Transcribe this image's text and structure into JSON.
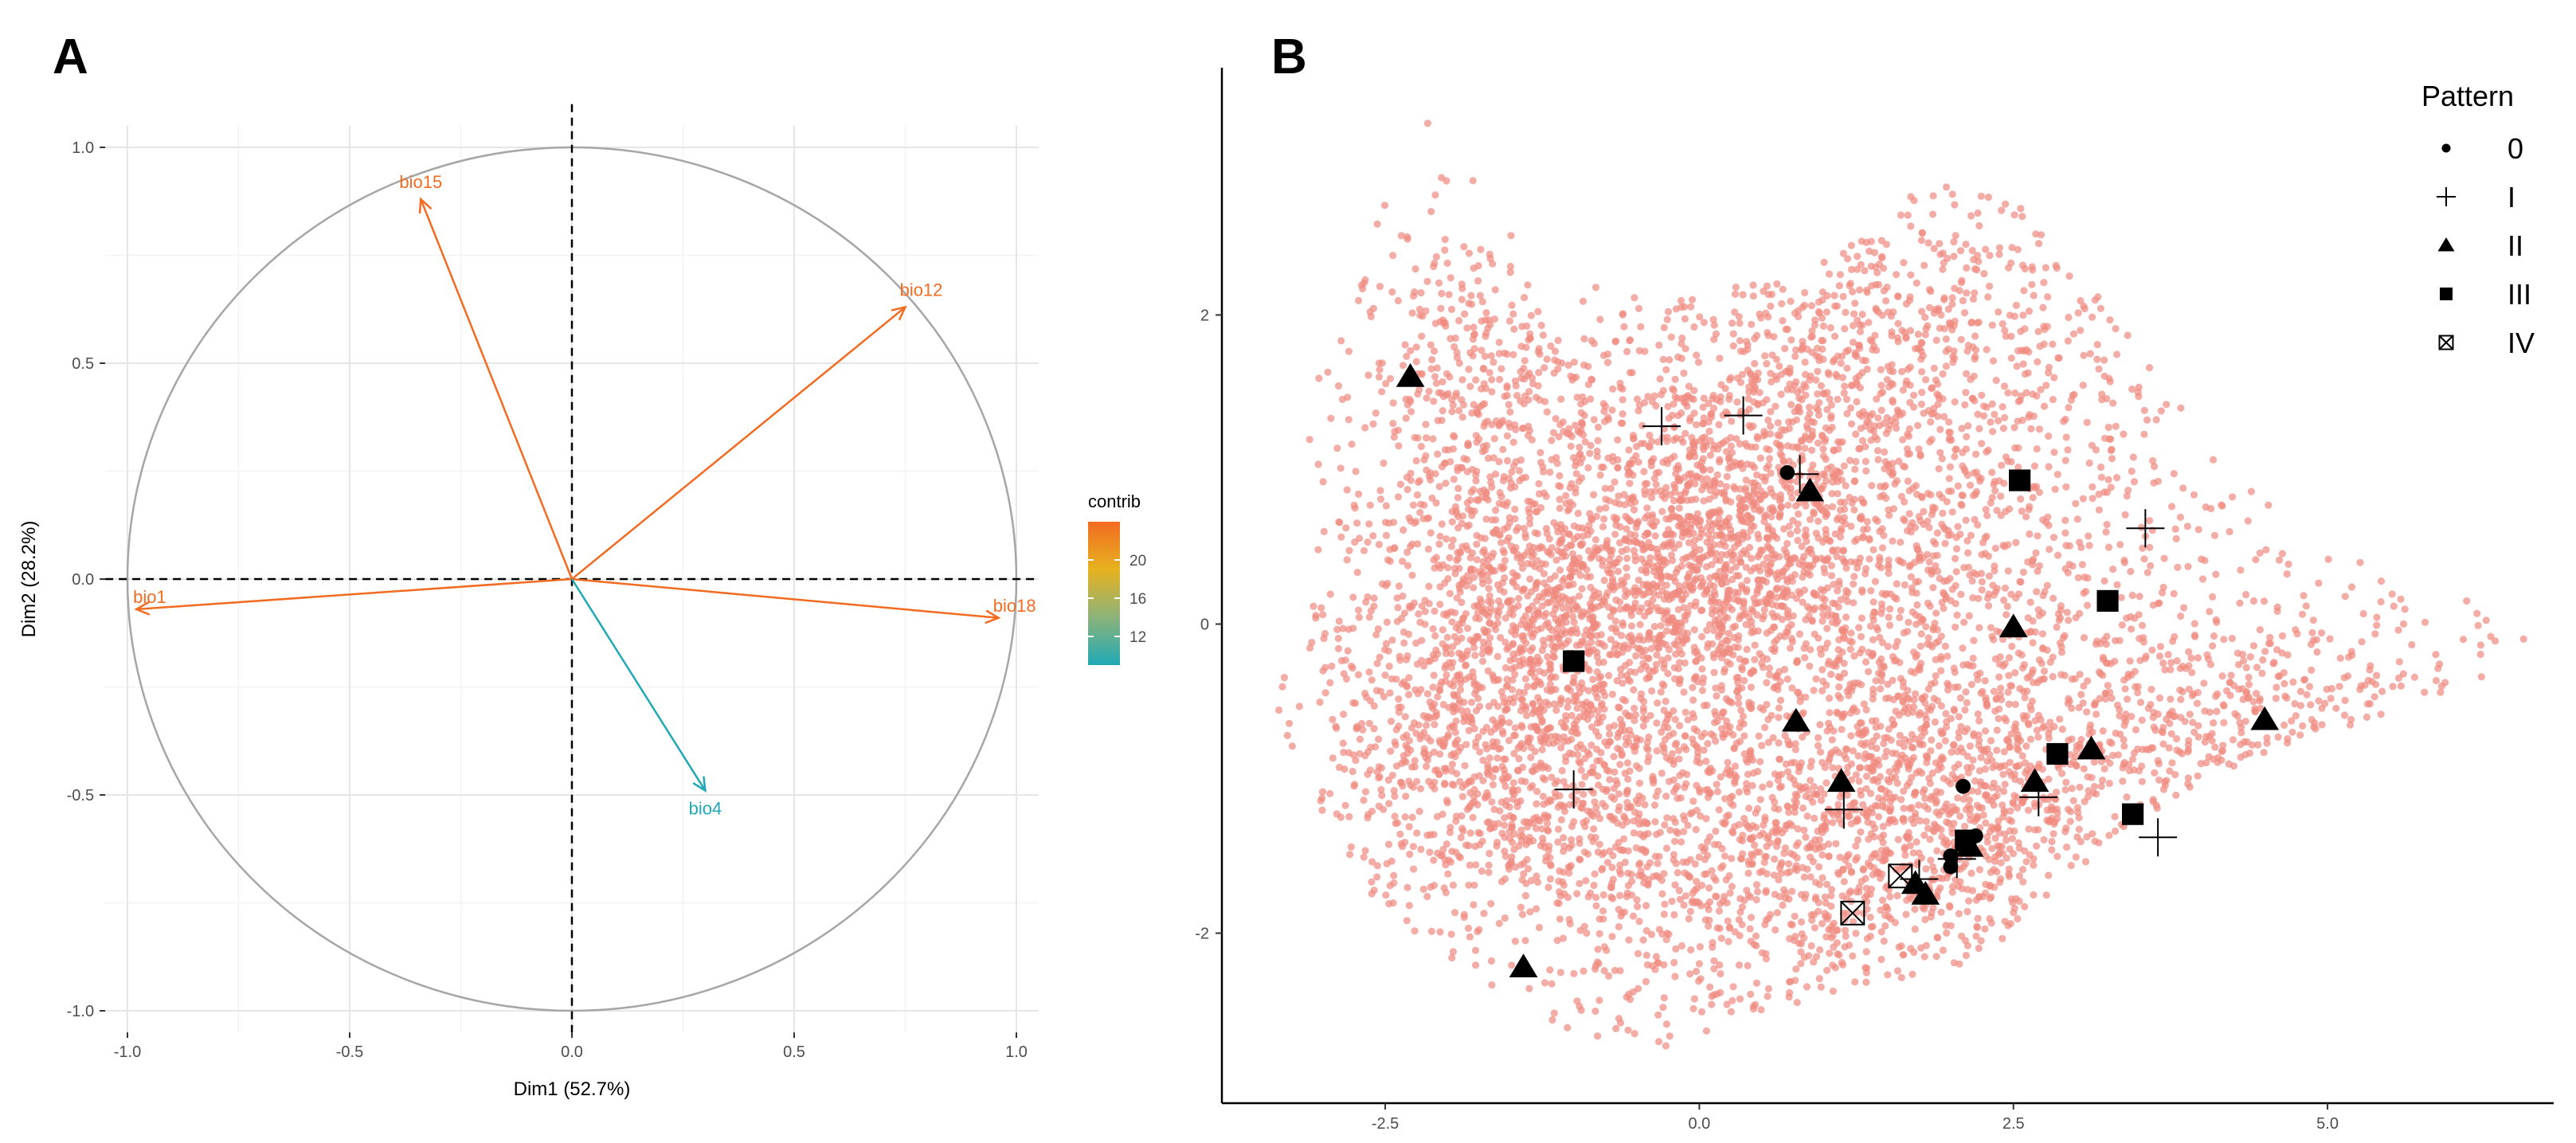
{
  "chart_data": [
    {
      "panel": "A",
      "type": "pca-variable-correlation-circle",
      "xlabel": "Dim1 (52.7%)",
      "ylabel": "Dim2 (28.2%)",
      "xlim": [
        -1.0,
        1.0
      ],
      "ylim": [
        -1.0,
        1.0
      ],
      "x_ticks": [
        "-1.0",
        "-0.5",
        "0.0",
        "0.5",
        "1.0"
      ],
      "y_ticks": [
        "-1.0",
        "-0.5",
        "0.0",
        "0.5",
        "1.0"
      ],
      "grid": true,
      "variables": [
        {
          "name": "bio15",
          "x": -0.34,
          "y": 0.88,
          "contrib": 24,
          "color": "#f26b21"
        },
        {
          "name": "bio12",
          "x": 0.75,
          "y": 0.63,
          "contrib": 24,
          "color": "#f26b21"
        },
        {
          "name": "bio1",
          "x": -0.98,
          "y": -0.07,
          "contrib": 24,
          "color": "#f26b21"
        },
        {
          "name": "bio18",
          "x": 0.96,
          "y": -0.09,
          "contrib": 24,
          "color": "#f26b21"
        },
        {
          "name": "bio4",
          "x": 0.3,
          "y": -0.49,
          "contrib": 9,
          "color": "#1fa9b5"
        }
      ],
      "colorbar": {
        "title": "contrib",
        "ticks": [
          "12",
          "16",
          "20"
        ],
        "range": [
          9,
          24
        ],
        "colors": [
          "#1fa9b5",
          "#8cb37a",
          "#e6b21f",
          "#f26b21"
        ]
      }
    },
    {
      "panel": "B",
      "type": "scatter",
      "xlabel": "",
      "ylabel": "",
      "xlim": [
        -3.8,
        6.8
      ],
      "ylim": [
        -3.1,
        3.6
      ],
      "x_ticks": [
        "-2.5",
        "0.0",
        "2.5",
        "5.0"
      ],
      "y_ticks": [
        "-2",
        "0",
        "2"
      ],
      "background_points_color": "#f08a80",
      "legend": {
        "title": "Pattern",
        "position": "top-right",
        "entries": [
          {
            "label": "0",
            "shape": "circle"
          },
          {
            "label": "I",
            "shape": "plus"
          },
          {
            "label": "II",
            "shape": "triangle"
          },
          {
            "label": "III",
            "shape": "square"
          },
          {
            "label": "IV",
            "shape": "boxed-x"
          }
        ]
      },
      "pattern_points": [
        {
          "pattern": "0",
          "x": 0.7,
          "y": 0.98
        },
        {
          "pattern": "0",
          "x": 2.1,
          "y": -1.05
        },
        {
          "pattern": "0",
          "x": 2.2,
          "y": -1.37
        },
        {
          "pattern": "0",
          "x": 2.0,
          "y": -1.5
        },
        {
          "pattern": "0",
          "x": 2.0,
          "y": -1.57
        },
        {
          "pattern": "I",
          "x": -0.3,
          "y": 1.28
        },
        {
          "pattern": "I",
          "x": 0.35,
          "y": 1.35
        },
        {
          "pattern": "I",
          "x": 0.8,
          "y": 0.97
        },
        {
          "pattern": "I",
          "x": 3.55,
          "y": 0.62
        },
        {
          "pattern": "I",
          "x": -1.0,
          "y": -1.07
        },
        {
          "pattern": "I",
          "x": 1.15,
          "y": -1.2
        },
        {
          "pattern": "I",
          "x": 2.7,
          "y": -1.12
        },
        {
          "pattern": "I",
          "x": 3.65,
          "y": -1.38
        },
        {
          "pattern": "I",
          "x": 2.05,
          "y": -1.52
        },
        {
          "pattern": "I",
          "x": 1.75,
          "y": -1.65
        },
        {
          "pattern": "II",
          "x": -2.3,
          "y": 1.6
        },
        {
          "pattern": "II",
          "x": 0.88,
          "y": 0.86
        },
        {
          "pattern": "II",
          "x": 2.5,
          "y": -0.02
        },
        {
          "pattern": "II",
          "x": 0.77,
          "y": -0.63
        },
        {
          "pattern": "II",
          "x": 1.13,
          "y": -1.02
        },
        {
          "pattern": "II",
          "x": 2.67,
          "y": -1.02
        },
        {
          "pattern": "II",
          "x": 3.12,
          "y": -0.81
        },
        {
          "pattern": "II",
          "x": 4.5,
          "y": -0.62
        },
        {
          "pattern": "II",
          "x": 2.15,
          "y": -1.44
        },
        {
          "pattern": "II",
          "x": 1.72,
          "y": -1.68
        },
        {
          "pattern": "II",
          "x": 1.8,
          "y": -1.75
        },
        {
          "pattern": "II",
          "x": -1.4,
          "y": -2.22
        },
        {
          "pattern": "III",
          "x": 2.55,
          "y": 0.93
        },
        {
          "pattern": "III",
          "x": 3.25,
          "y": 0.15
        },
        {
          "pattern": "III",
          "x": -1.0,
          "y": -0.24
        },
        {
          "pattern": "III",
          "x": 2.85,
          "y": -0.84
        },
        {
          "pattern": "III",
          "x": 3.45,
          "y": -1.23
        },
        {
          "pattern": "III",
          "x": 2.12,
          "y": -1.4
        },
        {
          "pattern": "IV",
          "x": 1.6,
          "y": -1.63
        },
        {
          "pattern": "IV",
          "x": 1.22,
          "y": -1.87
        }
      ]
    }
  ]
}
